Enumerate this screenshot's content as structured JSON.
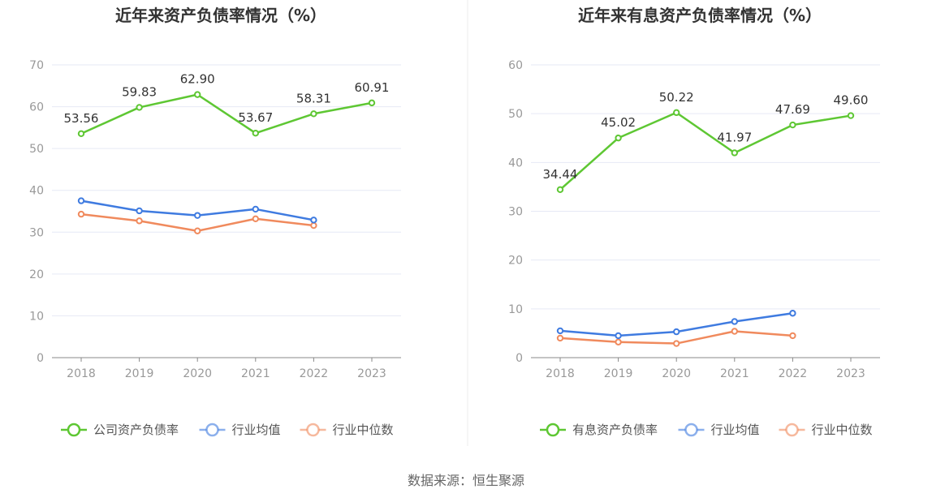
{
  "chart_data": [
    {
      "type": "line",
      "title": "近年来资产负债率情况（%）",
      "categories": [
        "2018",
        "2019",
        "2020",
        "2021",
        "2022",
        "2023"
      ],
      "ylim": [
        0,
        70
      ],
      "yticks": [
        "0",
        "10",
        "20",
        "30",
        "40",
        "50",
        "60",
        "70"
      ],
      "series": [
        {
          "name": "公司资产负债率",
          "color": "#5ec733",
          "values": [
            53.56,
            59.83,
            62.9,
            53.67,
            58.31,
            60.91
          ],
          "labels": [
            "53.56",
            "59.83",
            "62.90",
            "53.67",
            "58.31",
            "60.91"
          ]
        },
        {
          "name": "行业均值",
          "color": "#3f7be0",
          "values": [
            37.5,
            35.1,
            34.0,
            35.5,
            32.9,
            null
          ]
        },
        {
          "name": "行业中位数",
          "color": "#f08a5d",
          "values": [
            34.3,
            32.7,
            30.3,
            33.2,
            31.6,
            null
          ]
        }
      ]
    },
    {
      "type": "line",
      "title": "近年来有息资产负债率情况（%）",
      "categories": [
        "2018",
        "2019",
        "2020",
        "2021",
        "2022",
        "2023"
      ],
      "ylim": [
        0,
        60
      ],
      "yticks": [
        "0",
        "10",
        "20",
        "30",
        "40",
        "50",
        "60"
      ],
      "series": [
        {
          "name": "有息资产负债率",
          "color": "#5ec733",
          "values": [
            34.44,
            45.02,
            50.22,
            41.97,
            47.69,
            49.6
          ],
          "labels": [
            "34.44",
            "45.02",
            "50.22",
            "41.97",
            "47.69",
            "49.60"
          ]
        },
        {
          "name": "行业均值",
          "color": "#3f7be0",
          "values": [
            5.5,
            4.5,
            5.3,
            7.4,
            9.1,
            null
          ]
        },
        {
          "name": "行业中位数",
          "color": "#f08a5d",
          "values": [
            4.0,
            3.2,
            2.9,
            5.4,
            4.5,
            null
          ]
        }
      ]
    }
  ],
  "footer": {
    "source": "数据来源：恒生聚源"
  }
}
